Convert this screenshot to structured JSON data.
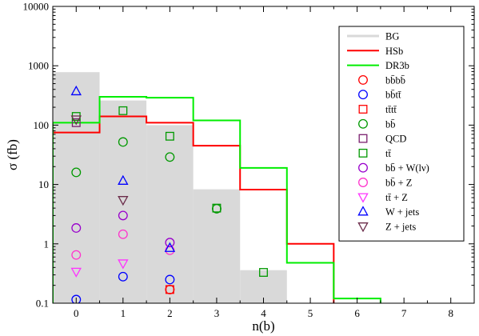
{
  "chart_data": {
    "type": "scatter",
    "xlabel": "n(b)",
    "ylabel": "σ (fb)",
    "xlim": [
      -0.5,
      8.5
    ],
    "ylim": [
      0.1,
      10000
    ],
    "y_scale": "log",
    "x_ticks": [
      0,
      1,
      2,
      3,
      4,
      5,
      6,
      7,
      8
    ],
    "y_ticks": [
      0.1,
      1,
      10,
      100,
      1000,
      10000
    ],
    "y_tick_labels": [
      "0.1",
      "1",
      "10",
      "100",
      "1000",
      "10000"
    ],
    "grid": false,
    "legend_position": "top-right",
    "histograms": [
      {
        "name": "BG",
        "style": "filled",
        "color": "#d9d9d9",
        "bins": [
          [
            -0.5,
            0.5,
            780
          ],
          [
            0.5,
            1.5,
            260
          ],
          [
            1.5,
            2.5,
            100
          ],
          [
            2.5,
            3.5,
            8.3
          ],
          [
            3.5,
            4.5,
            0.36
          ]
        ]
      },
      {
        "name": "HSb",
        "style": "step",
        "color": "#ff0000",
        "bins": [
          [
            -0.5,
            0.5,
            75
          ],
          [
            0.5,
            1.5,
            140
          ],
          [
            1.5,
            2.5,
            110
          ],
          [
            2.5,
            3.5,
            45
          ],
          [
            3.5,
            4.5,
            8.2
          ],
          [
            4.5,
            5.5,
            1.0
          ]
        ]
      },
      {
        "name": "DR3b",
        "style": "step",
        "color": "#00ee00",
        "bins": [
          [
            -0.5,
            0.5,
            110
          ],
          [
            0.5,
            1.5,
            300
          ],
          [
            1.5,
            2.5,
            290
          ],
          [
            2.5,
            3.5,
            120
          ],
          [
            3.5,
            4.5,
            19
          ],
          [
            4.5,
            5.5,
            0.48
          ],
          [
            5.5,
            6.5,
            0.12
          ]
        ]
      }
    ],
    "series": [
      {
        "name": "bb̄bb̄",
        "marker": "circle",
        "color": "#ff0000",
        "points": [
          [
            2,
            0.17
          ]
        ]
      },
      {
        "name": "bb̄tt̄",
        "marker": "circle",
        "color": "#0000ff",
        "points": [
          [
            0,
            0.115
          ],
          [
            1,
            0.28
          ],
          [
            2,
            0.25
          ]
        ]
      },
      {
        "name": "tt̄tt̄",
        "marker": "square",
        "color": "#ff0000",
        "points": [
          [
            2,
            0.17
          ]
        ]
      },
      {
        "name": "bb̄",
        "marker": "circle",
        "color": "#009900",
        "points": [
          [
            0,
            16
          ],
          [
            1,
            52
          ],
          [
            2,
            29
          ],
          [
            3,
            3.9
          ]
        ]
      },
      {
        "name": "QCD",
        "marker": "square",
        "color": "#7a1f6e",
        "points": [
          [
            0,
            110
          ]
        ]
      },
      {
        "name": "tt̄",
        "marker": "square",
        "color": "#009900",
        "points": [
          [
            0,
            140
          ],
          [
            1,
            175
          ],
          [
            2,
            65
          ],
          [
            3,
            4.0
          ],
          [
            4,
            0.33
          ]
        ]
      },
      {
        "name": "bb̄ + W(lν)",
        "marker": "circle",
        "color": "#9900cc",
        "points": [
          [
            0,
            1.85
          ],
          [
            1,
            3.0
          ],
          [
            2,
            1.05
          ]
        ]
      },
      {
        "name": "bb̄ + Z",
        "marker": "circle",
        "color": "#ff33cc",
        "points": [
          [
            0,
            0.65
          ],
          [
            1,
            1.45
          ],
          [
            2,
            0.78
          ]
        ]
      },
      {
        "name": "tt̄ + Z",
        "marker": "triangle-down",
        "color": "#ff33ff",
        "points": [
          [
            0,
            0.34
          ],
          [
            1,
            0.47
          ]
        ]
      },
      {
        "name": "W + jets",
        "marker": "triangle-up",
        "color": "#0000ff",
        "points": [
          [
            0,
            370
          ],
          [
            1,
            11.5
          ],
          [
            2,
            0.85
          ]
        ]
      },
      {
        "name": "Z + jets",
        "marker": "triangle-down",
        "color": "#6b2c4a",
        "points": [
          [
            0,
            125
          ],
          [
            1,
            5.5
          ]
        ]
      }
    ]
  }
}
